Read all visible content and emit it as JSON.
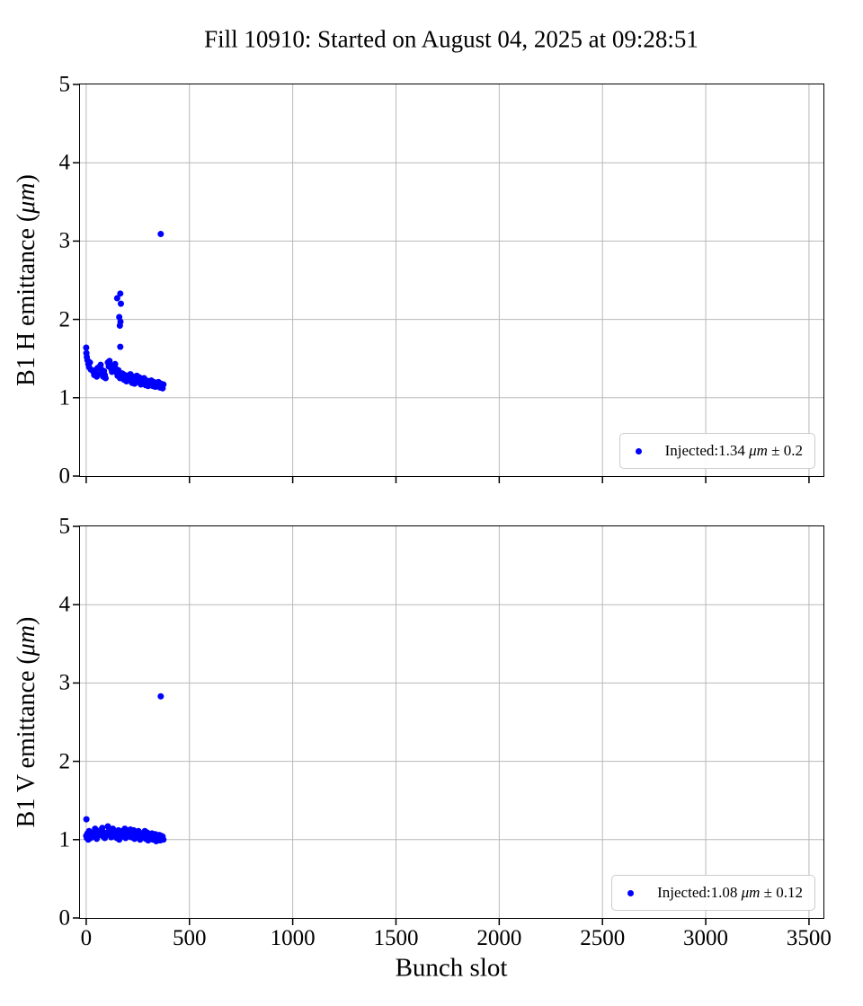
{
  "figure": {
    "title": "Fill 10910: Started on August 04, 2025 at 09:28:51",
    "xlabel": "Bunch slot",
    "background_color": "#ffffff",
    "spine_color": "#000000",
    "grid_color": "#b8b8b8",
    "point_color": "#0000ff"
  },
  "chart_data": [
    {
      "type": "scatter",
      "ylabel_prefix": "B1 H emittance (",
      "ylabel_unit": "μm",
      "ylabel_suffix": ")",
      "xlim": [
        -30,
        3570
      ],
      "ylim": [
        0,
        5
      ],
      "xticks": [
        0,
        500,
        1000,
        1500,
        2000,
        2500,
        3000,
        3500
      ],
      "yticks": [
        0,
        1,
        2,
        3,
        4,
        5
      ],
      "show_xtick_labels": false,
      "grid": true,
      "legend": {
        "position": "lower right",
        "marker": "dot",
        "marker_color": "#0000ff",
        "label_prefix": "Injected:1.34 ",
        "label_unit": "μm",
        "label_suffix": " ± 0.2",
        "mean": 1.34,
        "std": 0.2
      },
      "series": [
        {
          "name": "Injected B1 H",
          "color": "#0000ff",
          "marker": "dot",
          "points": [
            [
              0,
              1.64
            ],
            [
              1,
              1.57
            ],
            [
              3,
              1.52
            ],
            [
              6,
              1.48
            ],
            [
              10,
              1.43
            ],
            [
              14,
              1.39
            ],
            [
              18,
              1.45
            ],
            [
              22,
              1.36
            ],
            [
              35,
              1.33
            ],
            [
              39,
              1.29
            ],
            [
              43,
              1.35
            ],
            [
              47,
              1.31
            ],
            [
              51,
              1.27
            ],
            [
              55,
              1.38
            ],
            [
              58,
              1.3
            ],
            [
              70,
              1.42
            ],
            [
              74,
              1.36
            ],
            [
              78,
              1.31
            ],
            [
              82,
              1.27
            ],
            [
              86,
              1.34
            ],
            [
              90,
              1.29
            ],
            [
              94,
              1.25
            ],
            [
              105,
              1.45
            ],
            [
              109,
              1.4
            ],
            [
              113,
              1.47
            ],
            [
              117,
              1.42
            ],
            [
              121,
              1.37
            ],
            [
              125,
              1.33
            ],
            [
              129,
              1.39
            ],
            [
              140,
              1.43
            ],
            [
              144,
              1.37
            ],
            [
              148,
              1.32
            ],
            [
              152,
              1.28
            ],
            [
              156,
              1.35
            ],
            [
              160,
              1.3
            ],
            [
              164,
              1.25
            ],
            [
              150,
              2.27
            ],
            [
              165,
              2.33
            ],
            [
              168,
              2.2
            ],
            [
              160,
              2.03
            ],
            [
              166,
              1.97
            ],
            [
              163,
              1.92
            ],
            [
              165,
              1.65
            ],
            [
              175,
              1.31
            ],
            [
              179,
              1.27
            ],
            [
              183,
              1.23
            ],
            [
              187,
              1.29
            ],
            [
              191,
              1.25
            ],
            [
              195,
              1.21
            ],
            [
              199,
              1.28
            ],
            [
              210,
              1.26
            ],
            [
              214,
              1.3
            ],
            [
              218,
              1.23
            ],
            [
              222,
              1.19
            ],
            [
              226,
              1.27
            ],
            [
              230,
              1.22
            ],
            [
              234,
              1.18
            ],
            [
              245,
              1.28
            ],
            [
              249,
              1.24
            ],
            [
              253,
              1.2
            ],
            [
              257,
              1.26
            ],
            [
              261,
              1.21
            ],
            [
              265,
              1.17
            ],
            [
              269,
              1.23
            ],
            [
              280,
              1.25
            ],
            [
              284,
              1.2
            ],
            [
              288,
              1.16
            ],
            [
              292,
              1.22
            ],
            [
              296,
              1.18
            ],
            [
              300,
              1.15
            ],
            [
              304,
              1.21
            ],
            [
              315,
              1.22
            ],
            [
              319,
              1.18
            ],
            [
              323,
              1.15
            ],
            [
              327,
              1.2
            ],
            [
              331,
              1.17
            ],
            [
              335,
              1.14
            ],
            [
              339,
              1.19
            ],
            [
              350,
              1.2
            ],
            [
              354,
              1.16
            ],
            [
              358,
              1.13
            ],
            [
              362,
              1.18
            ],
            [
              366,
              1.15
            ],
            [
              370,
              1.12
            ],
            [
              374,
              1.17
            ],
            [
              361,
              3.09
            ]
          ]
        }
      ]
    },
    {
      "type": "scatter",
      "ylabel_prefix": "B1 V emittance (",
      "ylabel_unit": "μm",
      "ylabel_suffix": ")",
      "xlim": [
        -30,
        3570
      ],
      "ylim": [
        0,
        5
      ],
      "xticks": [
        0,
        500,
        1000,
        1500,
        2000,
        2500,
        3000,
        3500
      ],
      "yticks": [
        0,
        1,
        2,
        3,
        4,
        5
      ],
      "show_xtick_labels": true,
      "grid": true,
      "legend": {
        "position": "lower right",
        "marker": "dot",
        "marker_color": "#0000ff",
        "label_prefix": "Injected:1.08 ",
        "label_unit": "μm",
        "label_suffix": " ± 0.12",
        "mean": 1.08,
        "std": 0.12
      },
      "series": [
        {
          "name": "Injected B1 V",
          "color": "#0000ff",
          "marker": "dot",
          "points": [
            [
              0,
              1.05
            ],
            [
              1,
              1.26
            ],
            [
              3,
              1.02
            ],
            [
              6,
              1.08
            ],
            [
              10,
              1.0
            ],
            [
              14,
              1.11
            ],
            [
              18,
              1.05
            ],
            [
              22,
              1.02
            ],
            [
              35,
              1.09
            ],
            [
              39,
              1.04
            ],
            [
              43,
              1.14
            ],
            [
              47,
              1.07
            ],
            [
              51,
              1.01
            ],
            [
              55,
              1.11
            ],
            [
              58,
              1.05
            ],
            [
              70,
              1.12
            ],
            [
              74,
              1.07
            ],
            [
              78,
              1.15
            ],
            [
              82,
              1.04
            ],
            [
              86,
              1.09
            ],
            [
              90,
              1.02
            ],
            [
              94,
              1.07
            ],
            [
              105,
              1.17
            ],
            [
              109,
              1.11
            ],
            [
              113,
              1.06
            ],
            [
              117,
              1.13
            ],
            [
              121,
              1.03
            ],
            [
              125,
              1.09
            ],
            [
              129,
              1.14
            ],
            [
              140,
              1.05
            ],
            [
              144,
              1.1
            ],
            [
              148,
              1.02
            ],
            [
              152,
              1.08
            ],
            [
              156,
              1.12
            ],
            [
              160,
              1.0
            ],
            [
              164,
              1.06
            ],
            [
              175,
              1.11
            ],
            [
              179,
              1.04
            ],
            [
              183,
              1.09
            ],
            [
              187,
              1.14
            ],
            [
              191,
              1.02
            ],
            [
              195,
              1.07
            ],
            [
              199,
              1.1
            ],
            [
              210,
              1.08
            ],
            [
              214,
              1.13
            ],
            [
              218,
              1.03
            ],
            [
              222,
              1.1
            ],
            [
              226,
              1.05
            ],
            [
              230,
              1.12
            ],
            [
              234,
              1.01
            ],
            [
              245,
              1.09
            ],
            [
              249,
              1.03
            ],
            [
              253,
              1.11
            ],
            [
              257,
              1.06
            ],
            [
              261,
              1.0
            ],
            [
              265,
              1.08
            ],
            [
              269,
              1.04
            ],
            [
              280,
              1.07
            ],
            [
              284,
              1.11
            ],
            [
              288,
              1.01
            ],
            [
              292,
              1.05
            ],
            [
              296,
              1.09
            ],
            [
              300,
              0.99
            ],
            [
              304,
              1.06
            ],
            [
              315,
              1.04
            ],
            [
              319,
              1.08
            ],
            [
              323,
              1.0
            ],
            [
              327,
              1.06
            ],
            [
              331,
              1.02
            ],
            [
              335,
              1.07
            ],
            [
              339,
              0.98
            ],
            [
              350,
              1.03
            ],
            [
              354,
              1.06
            ],
            [
              358,
              0.99
            ],
            [
              362,
              1.05
            ],
            [
              366,
              1.01
            ],
            [
              370,
              1.04
            ],
            [
              374,
              1.0
            ],
            [
              361,
              2.83
            ]
          ]
        }
      ]
    }
  ]
}
